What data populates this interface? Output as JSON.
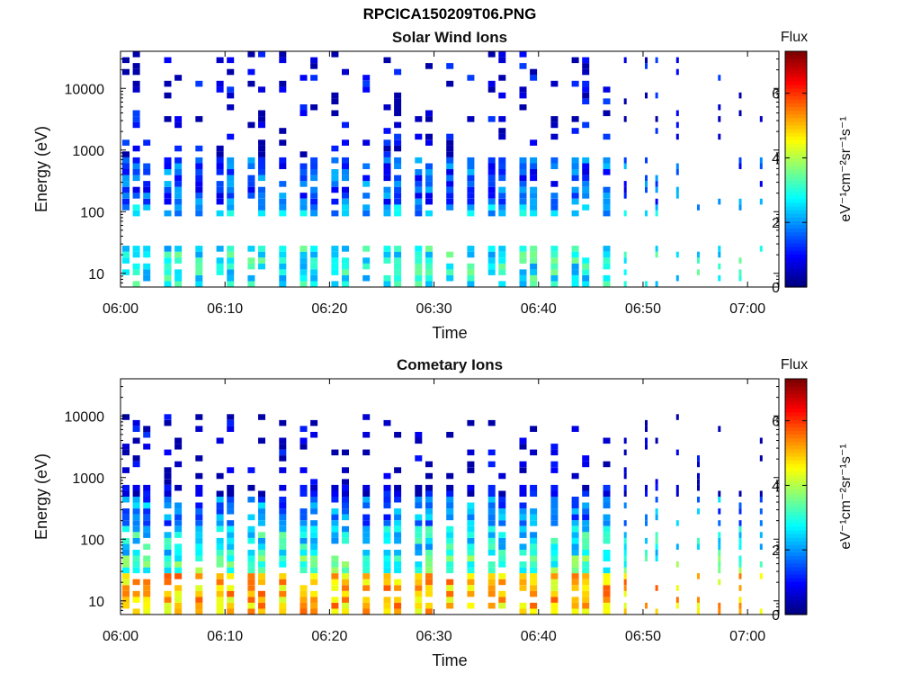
{
  "figure": {
    "filename_title": "RPCICA150209T06.PNG"
  },
  "chart_data": [
    {
      "type": "heatmap",
      "title": "Solar Wind Ions",
      "xlabel": "Time",
      "ylabel": "Energy (eV)",
      "yscale": "log",
      "ylim": [
        6,
        40000
      ],
      "xlim": [
        "06:00",
        "07:03"
      ],
      "x_ticks": [
        "06:00",
        "06:10",
        "06:20",
        "06:30",
        "06:40",
        "06:50",
        "07:00"
      ],
      "y_ticks": [
        10,
        100,
        1000,
        10000
      ],
      "colorbar": {
        "title": "Flux",
        "label": "eV⁻¹cm⁻²sr⁻¹s⁻¹",
        "range": [
          0,
          7.3
        ],
        "ticks": [
          0,
          2,
          4,
          6
        ],
        "colormap": "jet"
      },
      "sweep_times": [
        "06:00",
        "06:01",
        "06:02",
        "06:04",
        "06:05",
        "06:07",
        "06:09",
        "06:10",
        "06:12",
        "06:13",
        "06:15",
        "06:17",
        "06:18",
        "06:20",
        "06:21",
        "06:23",
        "06:25",
        "06:26",
        "06:28",
        "06:29",
        "06:31",
        "06:33",
        "06:35",
        "06:36",
        "06:38",
        "06:39",
        "06:41",
        "06:43",
        "06:44",
        "06:46",
        "06:48",
        "06:50",
        "06:51",
        "06:53",
        "06:55",
        "06:57",
        "06:59",
        "07:01"
      ],
      "bands": [
        {
          "energy_range_eV": [
            6,
            30
          ],
          "flux": 2.8
        },
        {
          "energy_range_eV": [
            80,
            140
          ],
          "flux": 2.2
        },
        {
          "energy_range_eV": [
            140,
            700
          ],
          "flux": 1.5
        },
        {
          "energy_range_eV": [
            700,
            40000
          ],
          "flux": 0.6
        }
      ],
      "grid": false
    },
    {
      "type": "heatmap",
      "title": "Cometary Ions",
      "xlabel": "Time",
      "ylabel": "Energy (eV)",
      "yscale": "log",
      "ylim": [
        6,
        40000
      ],
      "xlim": [
        "06:00",
        "07:03"
      ],
      "x_ticks": [
        "06:00",
        "06:10",
        "06:20",
        "06:30",
        "06:40",
        "06:50",
        "07:00"
      ],
      "y_ticks": [
        10,
        100,
        1000,
        10000
      ],
      "colorbar": {
        "title": "Flux",
        "label": "eV⁻¹cm⁻²sr⁻¹s⁻¹",
        "range": [
          0,
          7.3
        ],
        "ticks": [
          0,
          2,
          4,
          6
        ],
        "colormap": "jet"
      },
      "sweep_times": [
        "06:00",
        "06:01",
        "06:02",
        "06:04",
        "06:05",
        "06:07",
        "06:09",
        "06:10",
        "06:12",
        "06:13",
        "06:15",
        "06:17",
        "06:18",
        "06:20",
        "06:21",
        "06:23",
        "06:25",
        "06:26",
        "06:28",
        "06:29",
        "06:31",
        "06:33",
        "06:35",
        "06:36",
        "06:38",
        "06:39",
        "06:41",
        "06:43",
        "06:44",
        "06:46",
        "06:48",
        "06:50",
        "06:51",
        "06:53",
        "06:55",
        "06:57",
        "06:59",
        "07:01"
      ],
      "bands": [
        {
          "energy_range_eV": [
            6,
            30
          ],
          "flux": 5.0
        },
        {
          "energy_range_eV": [
            30,
            60
          ],
          "flux": 3.2
        },
        {
          "energy_range_eV": [
            60,
            150
          ],
          "flux": 2.7
        },
        {
          "energy_range_eV": [
            150,
            450
          ],
          "flux": 1.8
        },
        {
          "energy_range_eV": [
            450,
            10000
          ],
          "flux": 0.5
        }
      ],
      "grid": false
    }
  ]
}
